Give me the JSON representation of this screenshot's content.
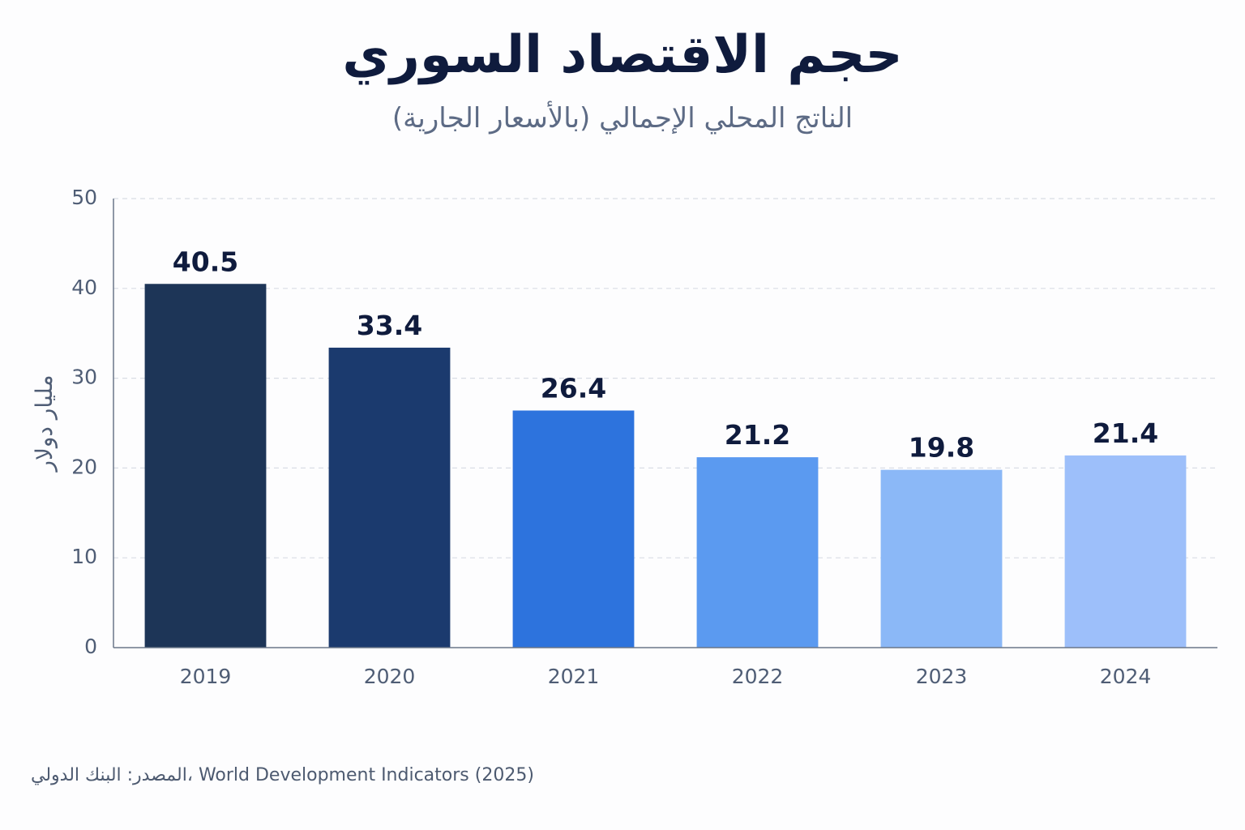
{
  "chart_data": {
    "type": "bar",
    "title": "حجم الاقتصاد السوري",
    "subtitle": "الناتج المحلي الإجمالي (بالأسعار الجارية)",
    "ylabel": "مليار دولار",
    "xlabel": "",
    "categories": [
      "2019",
      "2020",
      "2021",
      "2022",
      "2023",
      "2024"
    ],
    "values": [
      40.5,
      33.4,
      26.4,
      21.2,
      19.8,
      21.4
    ],
    "value_labels": [
      "40.5",
      "33.4",
      "26.4",
      "21.2",
      "19.8",
      "21.4"
    ],
    "bar_colors": [
      "#1d3557",
      "#1b3a6e",
      "#2d73dd",
      "#5b9af0",
      "#8bb8f7",
      "#9dbffa"
    ],
    "ylim": [
      0,
      50
    ],
    "yticks": [
      "0",
      "10",
      "20",
      "30",
      "40",
      "50"
    ],
    "grid": true,
    "grid_style": "dashed",
    "legend": "none",
    "source": "المصدر: البنك الدولي، World Development Indicators (2025)"
  }
}
